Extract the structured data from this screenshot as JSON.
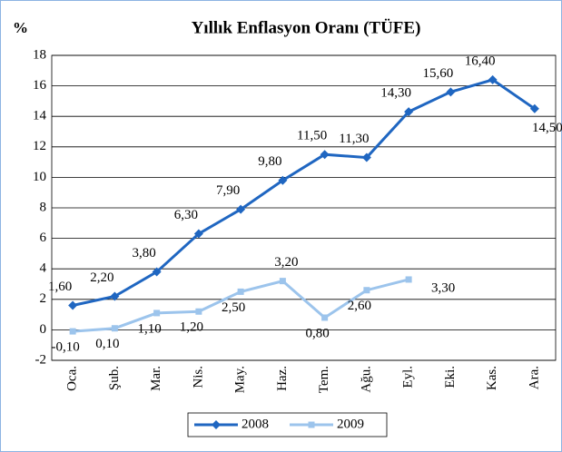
{
  "chart_data": {
    "type": "line",
    "title": "Yıllık Enflasyon Oranı (TÜFE)",
    "y_label": "%",
    "categories": [
      "Oca.",
      "Şub.",
      "Mar.",
      "Nis.",
      "May.",
      "Haz.",
      "Tem.",
      "Ağu.",
      "Eyl.",
      "Eki.",
      "Kas.",
      "Ara."
    ],
    "series": [
      {
        "name": "2008",
        "color": "#1f66c1",
        "marker": "diamond",
        "values": [
          1.6,
          2.2,
          3.8,
          6.3,
          7.9,
          9.8,
          11.5,
          11.3,
          14.3,
          15.6,
          16.4,
          14.5
        ],
        "value_labels": [
          "1,60",
          "2,20",
          "3,80",
          "6,30",
          "7,90",
          "9,80",
          "11,50",
          "11,30",
          "14,30",
          "15,60",
          "16,40",
          "14,50"
        ]
      },
      {
        "name": "2009",
        "color": "#9cc4ec",
        "marker": "square",
        "values": [
          -0.1,
          0.1,
          1.1,
          1.2,
          2.5,
          3.2,
          0.8,
          2.6,
          3.3,
          null,
          null,
          null
        ],
        "value_labels": [
          "-0,10",
          "0,10",
          "1,10",
          "1,20",
          "2,50",
          "3,20",
          "0,80",
          "2,60",
          "3,30",
          null,
          null,
          null
        ]
      }
    ],
    "ylim": [
      -2,
      18
    ],
    "yticks": [
      -2,
      0,
      2,
      4,
      6,
      8,
      10,
      12,
      14,
      16,
      18
    ],
    "grid": true,
    "legend": "bottom"
  }
}
